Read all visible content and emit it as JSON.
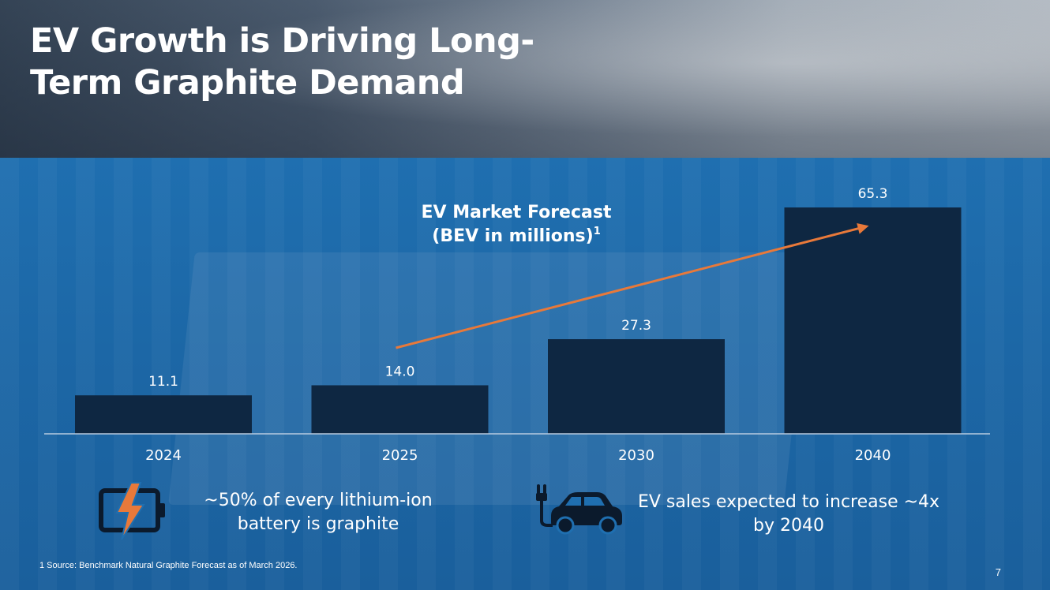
{
  "slide": {
    "title": "EV Growth is Driving Long-Term Graphite Demand",
    "page_number": "7",
    "footnote": "1 Source: Benchmark Natural Graphite Forecast as of March 2026."
  },
  "chart_data": {
    "type": "bar",
    "title": "EV Market Forecast",
    "subtitle": "(BEV in millions)",
    "title_superscript": "1",
    "categories": [
      "2024",
      "2025",
      "2030",
      "2040"
    ],
    "values": [
      11.1,
      14.0,
      27.3,
      65.3
    ],
    "value_labels": [
      "11.1",
      "14.0",
      "27.3",
      "65.3"
    ],
    "xlabel": "",
    "ylabel": "",
    "ylim": [
      0,
      65.3
    ],
    "grid": false,
    "colors": {
      "bar": "#0e2742",
      "trend_arrow": "#e8793a",
      "axis": "#b8cbe0",
      "label": "#ffffff"
    },
    "trend_arrow": {
      "from": {
        "x": "2025",
        "y": 24.8
      },
      "to": {
        "x": "2040",
        "y": 60.0
      }
    }
  },
  "stats": [
    {
      "icon": "battery-lightning-icon",
      "text": "~50% of every lithium-ion battery is graphite"
    },
    {
      "icon": "electric-car-icon",
      "text": "EV sales expected to increase ~4x by 2040"
    }
  ]
}
